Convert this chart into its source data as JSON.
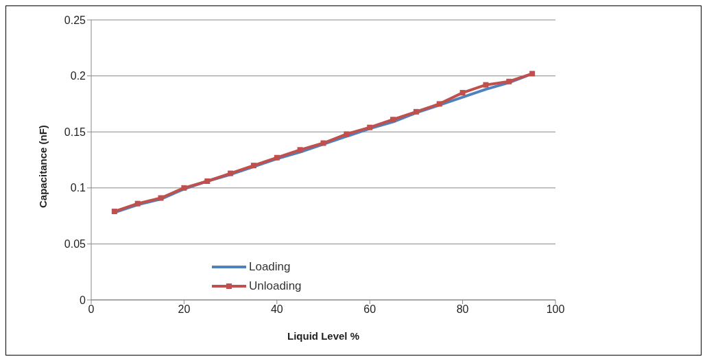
{
  "chart_data": {
    "type": "line",
    "xlabel": "Liquid Level  %",
    "ylabel": "Capacitance (nF)",
    "x": [
      5,
      10,
      15,
      20,
      25,
      30,
      35,
      40,
      45,
      50,
      55,
      60,
      65,
      70,
      75,
      80,
      85,
      90,
      95
    ],
    "series": [
      {
        "name": "Loading",
        "color": "#4f81bd",
        "marker": "none",
        "values": [
          0.078,
          0.085,
          0.09,
          0.099,
          0.106,
          0.112,
          0.119,
          0.126,
          0.132,
          0.139,
          0.146,
          0.153,
          0.159,
          0.167,
          0.174,
          0.181,
          0.188,
          0.194,
          0.202
        ]
      },
      {
        "name": "Unloading",
        "color": "#c0504d",
        "marker": "square",
        "values": [
          0.079,
          0.086,
          0.091,
          0.1,
          0.106,
          0.113,
          0.12,
          0.127,
          0.134,
          0.14,
          0.148,
          0.154,
          0.161,
          0.168,
          0.175,
          0.185,
          0.192,
          0.195,
          0.202
        ]
      }
    ],
    "xlim": [
      0,
      100
    ],
    "xticks": [
      0,
      20,
      40,
      60,
      80,
      100
    ],
    "ylim": [
      0,
      0.25
    ],
    "yticks": [
      0,
      0.05,
      0.1,
      0.15,
      0.2,
      0.25
    ],
    "grid": "y",
    "legend": "bottom left",
    "line_style": "solid"
  }
}
